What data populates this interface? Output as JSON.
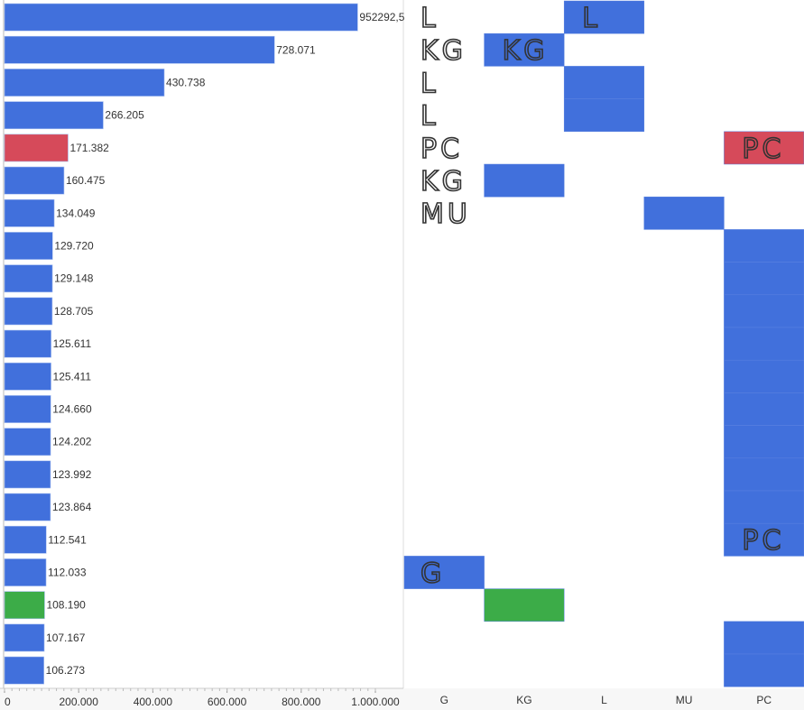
{
  "chart_data": [
    {
      "type": "bar",
      "orientation": "horizontal",
      "values": [
        952292.5,
        728071,
        430738,
        266205,
        171382,
        160475,
        134049,
        129720,
        129148,
        128705,
        125611,
        125411,
        124660,
        124202,
        123992,
        123864,
        112541,
        112033,
        108190,
        107167,
        106273
      ],
      "data_labels": [
        "952292,5",
        "728.071",
        "430.738",
        "266.205",
        "171.382",
        "160.475",
        "134.049",
        "129.720",
        "129.148",
        "128.705",
        "125.611",
        "125.411",
        "124.660",
        "124.202",
        "123.992",
        "123.864",
        "112.541",
        "112.033",
        "108.190",
        "107.167",
        "106.273"
      ],
      "highlight": {
        "4": "#d64a5a",
        "18": "#3cac48"
      },
      "xlim": [
        0,
        1030000
      ],
      "xticks": [
        0,
        200000,
        400000,
        600000,
        800000,
        1000000
      ],
      "xtick_labels": [
        "0",
        "200.000",
        "400.000",
        "600.000",
        "800.000",
        "1.000.000"
      ]
    },
    {
      "type": "heatmap",
      "columns": [
        "G",
        "KG",
        "L",
        "MU",
        "PC"
      ],
      "rows": [
        "L",
        "KG",
        "L",
        "L",
        "PC",
        "KG",
        "MU",
        "PC",
        "PC",
        "PC",
        "PC",
        "PC",
        "PC",
        "PC",
        "PC",
        "PC",
        "PC",
        "G",
        "KG",
        "PC",
        "PC"
      ],
      "highlight": {
        "4": "#d64a5a",
        "18": "#3cac48"
      },
      "annotations": [
        {
          "row": 0,
          "col": 0,
          "text": "L"
        },
        {
          "row": 1,
          "col": 0,
          "text": "KG"
        },
        {
          "row": 2,
          "col": 0,
          "text": "L"
        },
        {
          "row": 3,
          "col": 0,
          "text": "L"
        },
        {
          "row": 4,
          "col": 0,
          "text": "PC"
        },
        {
          "row": 5,
          "col": 0,
          "text": "KG"
        },
        {
          "row": 6,
          "col": 0,
          "text": "MU"
        },
        {
          "row": 0,
          "col": 2,
          "text": "L"
        },
        {
          "row": 1,
          "col": 1,
          "text": "KG"
        },
        {
          "row": 4,
          "col": 4,
          "text": "PC"
        },
        {
          "row": 16,
          "col": 4,
          "text": "PC"
        },
        {
          "row": 17,
          "col": 0,
          "text": "G"
        }
      ]
    }
  ],
  "colors": {
    "bar": "#4170dc",
    "red": "#d64a5a",
    "green": "#3cac48"
  }
}
